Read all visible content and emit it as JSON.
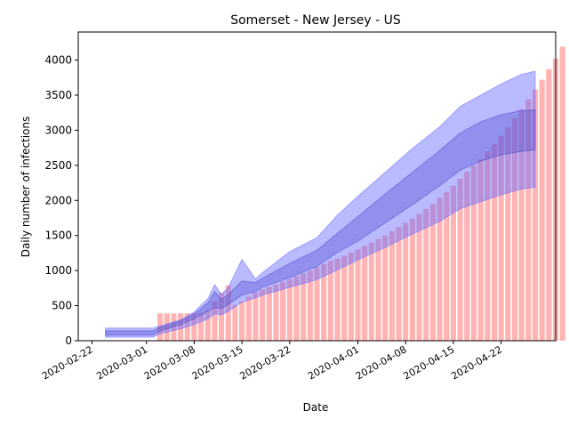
{
  "chart_data": {
    "type": "bar",
    "title": "Somerset - New Jersey - US",
    "xlabel": "Date",
    "ylabel": "Daily number of infections",
    "x_range": [
      "2020-02-20",
      "2020-04-30"
    ],
    "ylim": [
      0,
      4400
    ],
    "x_ticks": [
      "2020-02-22",
      "2020-03-01",
      "2020-03-08",
      "2020-03-15",
      "2020-03-22",
      "2020-04-01",
      "2020-04-08",
      "2020-04-15",
      "2020-04-22"
    ],
    "y_ticks": [
      0,
      500,
      1000,
      1500,
      2000,
      2500,
      3000,
      3500,
      4000
    ],
    "grid": false,
    "colors": {
      "bars": "#ff8080",
      "outer_band": "#6666ff",
      "inner_band": "#4444cc"
    },
    "bars": {
      "start_date": "2020-03-03",
      "values": [
        390,
        390,
        390,
        390,
        390,
        390,
        390,
        430,
        560,
        680,
        790,
        510,
        560,
        630,
        690,
        730,
        770,
        800,
        840,
        880,
        920,
        960,
        1000,
        1050,
        1090,
        1140,
        1170,
        1210,
        1260,
        1300,
        1350,
        1400,
        1450,
        1500,
        1560,
        1620,
        1680,
        1740,
        1810,
        1880,
        1950,
        2040,
        2120,
        2210,
        2310,
        2410,
        2500,
        2590,
        2700,
        2800,
        2920,
        3040,
        3170,
        3300,
        3440,
        3580,
        3720,
        3870,
        4020,
        4190
      ]
    },
    "bands": [
      {
        "dates": [
          "2020-02-24",
          "2020-03-02",
          "2020-03-03",
          "2020-03-06",
          "2020-03-08",
          "2020-03-10",
          "2020-03-11",
          "2020-03-12",
          "2020-03-13",
          "2020-03-15",
          "2020-03-17",
          "2020-03-18",
          "2020-03-22",
          "2020-03-26",
          "2020-03-29",
          "2020-04-01",
          "2020-04-05",
          "2020-04-09",
          "2020-04-13",
          "2020-04-16",
          "2020-04-19",
          "2020-04-22",
          "2020-04-25",
          "2020-04-27"
        ],
        "low": [
          50,
          50,
          100,
          170,
          230,
          310,
          380,
          370,
          420,
          550,
          610,
          650,
          760,
          870,
          1010,
          1150,
          1330,
          1520,
          1700,
          1880,
          1980,
          2080,
          2160,
          2190
        ],
        "high": [
          180,
          180,
          210,
          300,
          410,
          600,
          800,
          660,
          760,
          1160,
          880,
          970,
          1270,
          1470,
          1790,
          2060,
          2400,
          2740,
          3050,
          3340,
          3500,
          3660,
          3800,
          3840
        ]
      },
      {
        "dates": [
          "2020-02-24",
          "2020-03-02",
          "2020-03-03",
          "2020-03-06",
          "2020-03-08",
          "2020-03-10",
          "2020-03-11",
          "2020-03-12",
          "2020-03-13",
          "2020-03-15",
          "2020-03-17",
          "2020-03-18",
          "2020-03-22",
          "2020-03-26",
          "2020-03-29",
          "2020-04-01",
          "2020-04-05",
          "2020-04-09",
          "2020-04-13",
          "2020-04-16",
          "2020-04-19",
          "2020-04-22",
          "2020-04-25",
          "2020-04-27"
        ],
        "low": [
          80,
          80,
          140,
          230,
          310,
          420,
          470,
          460,
          520,
          650,
          700,
          760,
          900,
          1060,
          1260,
          1420,
          1680,
          1940,
          2210,
          2430,
          2560,
          2650,
          2700,
          2720
        ],
        "high": [
          140,
          140,
          190,
          280,
          380,
          540,
          700,
          590,
          660,
          850,
          830,
          890,
          1100,
          1290,
          1530,
          1770,
          2090,
          2400,
          2710,
          2960,
          3120,
          3220,
          3280,
          3290
        ]
      }
    ]
  }
}
